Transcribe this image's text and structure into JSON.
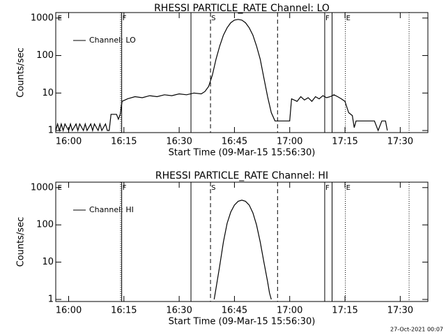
{
  "footer": "27-Oct-2021 00:07",
  "chart_data": [
    {
      "type": "line",
      "title": "RHESSI PARTICLE_RATE Channel: LO",
      "xlabel": "Start Time (09-Mar-15 15:56:30)",
      "ylabel": "Counts/sec",
      "yscale": "log",
      "ylim": [
        0.88,
        1400
      ],
      "yticks": [
        1,
        10,
        100,
        1000
      ],
      "xlim": [
        956.5,
        1057.5
      ],
      "xticks": [
        {
          "value": 960,
          "label": "16:00"
        },
        {
          "value": 975,
          "label": "16:15"
        },
        {
          "value": 990,
          "label": "16:30"
        },
        {
          "value": 1005,
          "label": "16:45"
        },
        {
          "value": 1020,
          "label": "17:00"
        },
        {
          "value": 1035,
          "label": "17:15"
        },
        {
          "value": 1050,
          "label": "17:30"
        }
      ],
      "legend": "upper left",
      "series": [
        {
          "name": "Channel: LO",
          "color": "#000000",
          "x": [
            956.5,
            957,
            957.5,
            958,
            958.5,
            959,
            960,
            960.5,
            961,
            962,
            962.5,
            963,
            964,
            964.5,
            965,
            966,
            966.5,
            967,
            968,
            968.5,
            969,
            970,
            970.5,
            971,
            971.5,
            973,
            973.5,
            974,
            974.5,
            976,
            978,
            980,
            982,
            984,
            986,
            988,
            990,
            992,
            994,
            996,
            997,
            998,
            999,
            1000,
            1001,
            1002,
            1003,
            1004,
            1005,
            1006,
            1007,
            1008,
            1009,
            1010,
            1011,
            1012,
            1013,
            1014,
            1015,
            1016,
            1020,
            1020.5,
            1022,
            1023,
            1024,
            1025,
            1026,
            1027,
            1028,
            1029,
            1030,
            1031,
            1032,
            1033,
            1034,
            1035,
            1036,
            1037,
            1037.5,
            1038,
            1043,
            1044,
            1045,
            1046,
            1046.5
          ],
          "values": [
            1,
            1.5,
            1,
            1.5,
            1,
            1.5,
            1,
            1.5,
            1,
            1.5,
            1,
            1.5,
            1,
            1.5,
            1,
            1.5,
            1,
            1.5,
            1,
            1.5,
            1,
            1.5,
            1,
            1,
            2.7,
            2.7,
            2,
            2.7,
            6,
            7,
            8,
            7.5,
            8.5,
            8,
            9,
            8.5,
            9.5,
            9,
            10,
            9.5,
            11,
            15,
            30,
            80,
            180,
            350,
            550,
            750,
            880,
            920,
            880,
            750,
            550,
            350,
            180,
            80,
            25,
            8,
            3,
            1.8,
            1.8,
            7,
            6,
            8,
            6.5,
            7.5,
            6,
            8,
            7,
            8.5,
            7.5,
            8,
            9,
            8,
            7,
            6,
            3,
            2.5,
            1.2,
            1.8,
            1.8,
            1,
            1.8,
            1.8,
            1
          ]
        }
      ],
      "markers": [
        {
          "x": 974.1,
          "style": "dotted"
        },
        {
          "x": 974.4,
          "style": "solid"
        },
        {
          "x": 993.2,
          "style": "solid"
        },
        {
          "x": 998.5,
          "style": "dashed"
        },
        {
          "x": 1016.7,
          "style": "dashed"
        },
        {
          "x": 1029.5,
          "style": "solid"
        },
        {
          "x": 1031.5,
          "style": "solid"
        },
        {
          "x": 1035.1,
          "style": "dotted"
        },
        {
          "x": 1052.4,
          "style": "dotted"
        }
      ],
      "marker_labels": [
        {
          "text": "E",
          "x": 957
        },
        {
          "text": "F",
          "x": 974.6
        },
        {
          "text": "S",
          "x": 998.7
        },
        {
          "text": "F",
          "x": 1029.7
        },
        {
          "text": "E",
          "x": 1035.3
        }
      ]
    },
    {
      "type": "line",
      "title": "RHESSI PARTICLE_RATE Channel: HI",
      "xlabel": "Start Time (09-Mar-15 15:56:30)",
      "ylabel": "Counts/sec",
      "yscale": "log",
      "ylim": [
        0.88,
        1400
      ],
      "yticks": [
        1,
        10,
        100,
        1000
      ],
      "xlim": [
        956.5,
        1057.5
      ],
      "xticks": [
        {
          "value": 960,
          "label": "16:00"
        },
        {
          "value": 975,
          "label": "16:15"
        },
        {
          "value": 990,
          "label": "16:30"
        },
        {
          "value": 1005,
          "label": "16:45"
        },
        {
          "value": 1020,
          "label": "17:00"
        },
        {
          "value": 1035,
          "label": "17:15"
        },
        {
          "value": 1050,
          "label": "17:30"
        }
      ],
      "legend": "upper left",
      "series": [
        {
          "name": "Channel: HI",
          "color": "#000000",
          "x": [
            999.5,
            1000,
            1001,
            1002,
            1003,
            1004,
            1005,
            1006,
            1007,
            1008,
            1009,
            1010,
            1011,
            1012,
            1013,
            1014,
            1014.5,
            1015
          ],
          "values": [
            1,
            2,
            8,
            35,
            110,
            220,
            340,
            430,
            460,
            430,
            340,
            210,
            100,
            35,
            10,
            3,
            1.5,
            1
          ]
        }
      ],
      "markers": [
        {
          "x": 974.1,
          "style": "dotted"
        },
        {
          "x": 974.4,
          "style": "solid"
        },
        {
          "x": 993.2,
          "style": "solid"
        },
        {
          "x": 998.5,
          "style": "dashed"
        },
        {
          "x": 1016.7,
          "style": "dashed"
        },
        {
          "x": 1029.5,
          "style": "solid"
        },
        {
          "x": 1031.5,
          "style": "solid"
        },
        {
          "x": 1035.1,
          "style": "dotted"
        },
        {
          "x": 1052.4,
          "style": "dotted"
        }
      ],
      "marker_labels": [
        {
          "text": "E",
          "x": 957
        },
        {
          "text": "F",
          "x": 974.6
        },
        {
          "text": "S",
          "x": 998.7
        },
        {
          "text": "F",
          "x": 1029.7
        },
        {
          "text": "E",
          "x": 1035.3
        }
      ]
    }
  ]
}
